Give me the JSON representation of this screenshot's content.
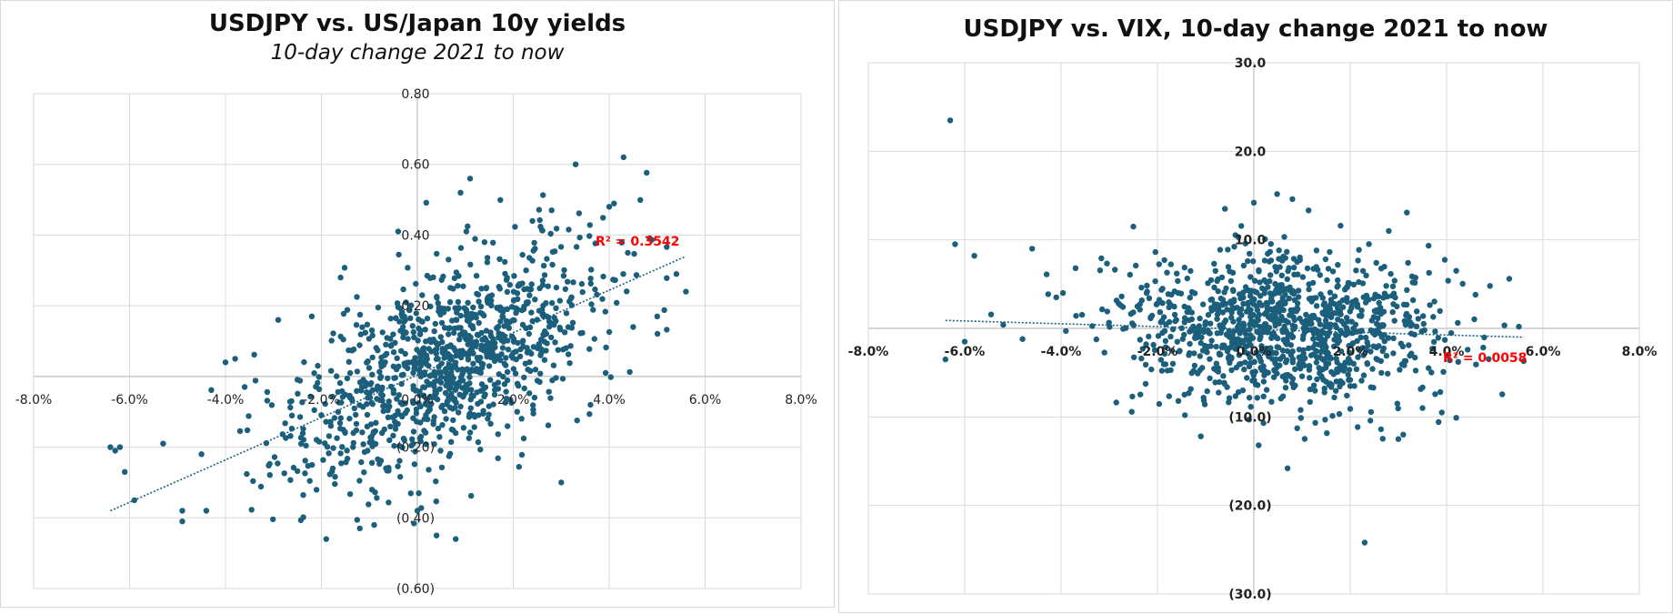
{
  "charts": {
    "left": {
      "title": "USDJPY vs. US/Japan 10y yields",
      "subtitle": "10-day change 2021 to now"
    },
    "right": {
      "title": "USDJPY vs. VIX, 10-day change 2021 to now"
    }
  },
  "colors": {
    "marker": "#1b5f7c",
    "trendline": "#1b5f7c",
    "gridline": "#d9d9d9",
    "axis": "#bfbfbf",
    "r2": "#ff0000"
  },
  "chart_data": [
    {
      "type": "scatter",
      "title": "USDJPY vs. US/Japan 10y yields",
      "subtitle": "10-day change 2021 to now",
      "xlim": [
        -8.0,
        8.0
      ],
      "ylim": [
        -0.6,
        0.8
      ],
      "x_ticks": [
        -8,
        -6,
        -4,
        -2,
        0,
        2,
        4,
        6,
        8
      ],
      "x_tick_labels": [
        "-8.0%",
        "-6.0%",
        "-4.0%",
        "-2.0%",
        "0.0%",
        "2.0%",
        "4.0%",
        "6.0%",
        "8.0%"
      ],
      "y_ticks": [
        0.8,
        0.6,
        0.4,
        0.2,
        -0.2,
        -0.4,
        -0.6
      ],
      "y_tick_labels": [
        "0.80",
        "0.60",
        "0.40",
        "0.20",
        "(0.20)",
        "(0.40)",
        "(0.60)"
      ],
      "grid": true,
      "trendline": {
        "type": "linear",
        "r2_label": "R² = 0.3542",
        "from": [
          -6.4,
          -0.38
        ],
        "to": [
          5.6,
          0.34
        ]
      },
      "cloud": {
        "n": 1050,
        "x_center": 0.6,
        "x_sd": 1.6,
        "slope": 0.063,
        "intercept": 0.0,
        "y_sd": 0.13,
        "seed": 17
      },
      "points": [
        [
          -6.4,
          -0.2
        ],
        [
          -6.3,
          -0.21
        ],
        [
          -6.2,
          -0.2
        ],
        [
          -6.1,
          -0.27
        ],
        [
          -5.9,
          -0.35
        ],
        [
          -5.3,
          -0.19
        ],
        [
          -4.9,
          -0.38
        ],
        [
          -4.9,
          -0.41
        ],
        [
          -4.5,
          -0.22
        ],
        [
          -4.4,
          -0.38
        ],
        [
          -4.0,
          0.04
        ],
        [
          -3.8,
          0.05
        ],
        [
          -3.6,
          -0.03
        ],
        [
          -2.9,
          0.16
        ],
        [
          -2.2,
          0.17
        ],
        [
          -1.6,
          0.28
        ],
        [
          -1.9,
          -0.46
        ],
        [
          -1.2,
          -0.43
        ],
        [
          -0.4,
          0.41
        ],
        [
          -0.9,
          -0.42
        ],
        [
          0.0,
          -0.38
        ],
        [
          0.4,
          -0.45
        ],
        [
          0.8,
          -0.46
        ],
        [
          0.9,
          0.52
        ],
        [
          1.1,
          0.56
        ],
        [
          1.4,
          0.38
        ],
        [
          3.3,
          0.6
        ],
        [
          4.3,
          0.62
        ],
        [
          4.0,
          0.48
        ],
        [
          5.6,
          0.24
        ],
        [
          5.4,
          0.29
        ],
        [
          5.0,
          0.17
        ],
        [
          4.5,
          0.14
        ],
        [
          3.0,
          -0.3
        ],
        [
          2.4,
          0.44
        ],
        [
          2.8,
          0.47
        ],
        [
          0.1,
          0.23
        ],
        [
          -0.3,
          0.14
        ],
        [
          0.6,
          -0.12
        ],
        [
          1.8,
          0.1
        ]
      ]
    },
    {
      "type": "scatter",
      "title": "USDJPY vs. VIX, 10-day change 2021 to now",
      "xlim": [
        -8.0,
        8.0
      ],
      "ylim": [
        -30.0,
        30.0
      ],
      "x_ticks": [
        -8,
        -6,
        -4,
        -2,
        0,
        2,
        4,
        6,
        8
      ],
      "x_tick_labels": [
        "-8.0%",
        "-6.0%",
        "-4.0%",
        "-2.0%",
        "0.0%",
        "2.0%",
        "4.0%",
        "6.0%",
        "8.0%"
      ],
      "y_ticks": [
        30,
        20,
        10,
        -10,
        -20,
        -30
      ],
      "y_tick_labels": [
        "30.0",
        "20.0",
        "10.0",
        "(10.0)",
        "(20.0)",
        "(30.0)"
      ],
      "grid": true,
      "trendline": {
        "type": "linear",
        "r2_label": "R² = 0.0058",
        "from": [
          -6.4,
          0.9
        ],
        "to": [
          5.6,
          -1.0
        ]
      },
      "cloud": {
        "n": 1050,
        "x_center": 0.6,
        "x_sd": 1.6,
        "slope": -0.16,
        "intercept": 0.0,
        "y_sd": 4.3,
        "seed": 41
      },
      "points": [
        [
          -6.3,
          23.5
        ],
        [
          -6.2,
          9.5
        ],
        [
          -5.8,
          8.2
        ],
        [
          -6.4,
          -3.5
        ],
        [
          -6.0,
          -1.5
        ],
        [
          -5.2,
          0.4
        ],
        [
          -4.8,
          -1.2
        ],
        [
          -4.6,
          9.0
        ],
        [
          -4.3,
          6.1
        ],
        [
          -4.1,
          3.5
        ],
        [
          -3.9,
          -0.3
        ],
        [
          -3.7,
          6.8
        ],
        [
          -2.5,
          11.5
        ],
        [
          -1.6,
          6.2
        ],
        [
          -1.1,
          -12.2
        ],
        [
          -0.6,
          13.5
        ],
        [
          0.0,
          14.2
        ],
        [
          0.8,
          14.6
        ],
        [
          1.8,
          11.6
        ],
        [
          2.8,
          11.0
        ],
        [
          0.1,
          -13.2
        ],
        [
          -0.1,
          -10.3
        ],
        [
          0.2,
          -10.7
        ],
        [
          0.7,
          -15.8
        ],
        [
          2.3,
          -24.2
        ],
        [
          3.0,
          -12.5
        ],
        [
          3.1,
          -12.0
        ],
        [
          4.2,
          -10.1
        ],
        [
          3.9,
          -9.5
        ],
        [
          3.5,
          -9.0
        ],
        [
          4.2,
          6.5
        ],
        [
          4.6,
          3.8
        ],
        [
          4.9,
          4.8
        ],
        [
          5.3,
          5.6
        ],
        [
          5.5,
          0.2
        ],
        [
          5.6,
          -3.7
        ],
        [
          3.2,
          7.4
        ],
        [
          1.3,
          8.8
        ],
        [
          -2.0,
          2.8
        ],
        [
          2.0,
          -6.5
        ]
      ]
    }
  ]
}
